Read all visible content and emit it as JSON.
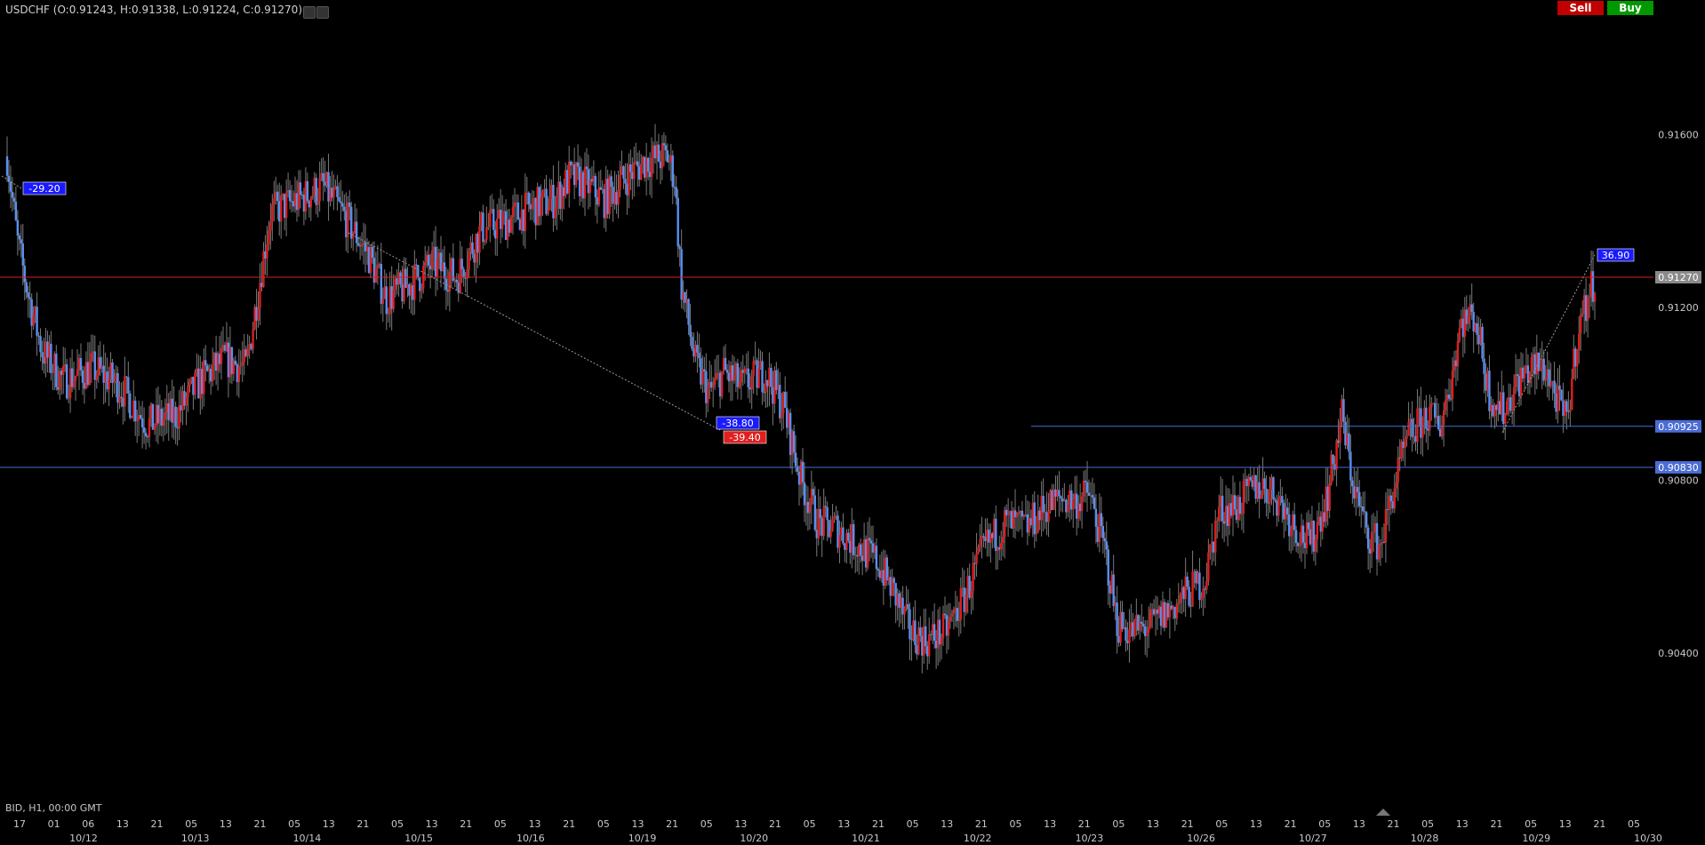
{
  "header": {
    "symbol_ohlc": "USDCHF (O:0.91243, H:0.91338, L:0.91224, C:0.91270)"
  },
  "buttons": {
    "sell": "Sell",
    "buy": "Buy"
  },
  "footer": {
    "info": "BID, H1, 00:00 GMT"
  },
  "colors": {
    "up": "#dd1e1e",
    "down": "#5b8ff0",
    "hline_red": "#d61f1f",
    "hline_blue": "#4a6cd4",
    "price_tag_grey": "#8a8a8a"
  },
  "chart_data": {
    "type": "candlestick",
    "symbol": "USDCHF",
    "timeframe": "H1",
    "ylim": [
      0.9003,
      0.9185
    ],
    "y_ticks": [
      {
        "label": "0.91600",
        "value": 0.916
      },
      {
        "label": "0.91200",
        "value": 0.912
      },
      {
        "label": "0.90800",
        "value": 0.908
      },
      {
        "label": "0.90400",
        "value": 0.904
      }
    ],
    "x_hour_labels": [
      "17",
      "01",
      "06",
      "13",
      "21",
      "05",
      "13",
      "21",
      "05",
      "13",
      "21",
      "05",
      "13",
      "21",
      "05",
      "13",
      "21",
      "05",
      "13",
      "21",
      "05",
      "13",
      "21",
      "05",
      "13",
      "21",
      "05",
      "13",
      "21",
      "05",
      "13",
      "21",
      "05",
      "13",
      "21",
      "05",
      "13",
      "21",
      "05",
      "13",
      "21",
      "05",
      "13",
      "21",
      "05",
      "13",
      "21",
      "05"
    ],
    "x_date_labels": [
      "10/12",
      "10/13",
      "10/14",
      "10/15",
      "10/16",
      "10/19",
      "10/20",
      "10/21",
      "10/22",
      "10/23",
      "10/26",
      "10/27",
      "10/28",
      "10/29",
      "10/30"
    ],
    "horizontal_lines": [
      {
        "price": 0.9127,
        "label": "0.91270",
        "color": "red"
      },
      {
        "price": 0.90925,
        "label": "0.90925",
        "color": "blue"
      },
      {
        "price": 0.9083,
        "label": "0.90830",
        "color": "blue"
      }
    ],
    "annotations": [
      "-29.20",
      "-38.80",
      "-39.40",
      "36.90"
    ],
    "close_path": [
      [
        0,
        0.9155
      ],
      [
        6,
        0.9135
      ],
      [
        12,
        0.9123
      ],
      [
        20,
        0.911
      ],
      [
        32,
        0.9103
      ],
      [
        48,
        0.9106
      ],
      [
        64,
        0.9102
      ],
      [
        80,
        0.9093
      ],
      [
        96,
        0.9095
      ],
      [
        110,
        0.9103
      ],
      [
        124,
        0.9108
      ],
      [
        136,
        0.9106
      ],
      [
        150,
        0.9142
      ],
      [
        166,
        0.9145
      ],
      [
        180,
        0.9148
      ],
      [
        194,
        0.914
      ],
      [
        206,
        0.9132
      ],
      [
        216,
        0.9122
      ],
      [
        228,
        0.9125
      ],
      [
        242,
        0.913
      ],
      [
        256,
        0.9127
      ],
      [
        270,
        0.9138
      ],
      [
        284,
        0.914
      ],
      [
        298,
        0.9143
      ],
      [
        312,
        0.9145
      ],
      [
        320,
        0.915
      ],
      [
        328,
        0.9149
      ],
      [
        340,
        0.9145
      ],
      [
        352,
        0.915
      ],
      [
        364,
        0.9154
      ],
      [
        376,
        0.9155
      ],
      [
        380,
        0.915
      ],
      [
        384,
        0.9125
      ],
      [
        392,
        0.9107
      ],
      [
        400,
        0.91
      ],
      [
        408,
        0.9105
      ],
      [
        418,
        0.9102
      ],
      [
        432,
        0.9105
      ],
      [
        442,
        0.9097
      ],
      [
        452,
        0.908
      ],
      [
        462,
        0.907
      ],
      [
        472,
        0.9069
      ],
      [
        484,
        0.9065
      ],
      [
        496,
        0.9061
      ],
      [
        506,
        0.9053
      ],
      [
        514,
        0.9045
      ],
      [
        524,
        0.9043
      ],
      [
        534,
        0.9045
      ],
      [
        544,
        0.9052
      ],
      [
        556,
        0.9064
      ],
      [
        568,
        0.907
      ],
      [
        580,
        0.9069
      ],
      [
        592,
        0.9074
      ],
      [
        600,
        0.9076
      ],
      [
        608,
        0.9075
      ],
      [
        616,
        0.9077
      ],
      [
        626,
        0.9062
      ],
      [
        632,
        0.9047
      ],
      [
        640,
        0.9045
      ],
      [
        650,
        0.9046
      ],
      [
        662,
        0.905
      ],
      [
        672,
        0.9054
      ],
      [
        682,
        0.9057
      ],
      [
        690,
        0.9073
      ],
      [
        700,
        0.9074
      ],
      [
        712,
        0.9079
      ],
      [
        722,
        0.9077
      ],
      [
        732,
        0.907
      ],
      [
        742,
        0.9065
      ],
      [
        752,
        0.9077
      ],
      [
        760,
        0.9095
      ],
      [
        766,
        0.908
      ],
      [
        774,
        0.9068
      ],
      [
        782,
        0.9065
      ],
      [
        790,
        0.9079
      ],
      [
        798,
        0.909
      ],
      [
        808,
        0.9095
      ],
      [
        816,
        0.9093
      ],
      [
        822,
        0.9103
      ],
      [
        828,
        0.9117
      ],
      [
        836,
        0.9118
      ],
      [
        844,
        0.91
      ],
      [
        852,
        0.9096
      ],
      [
        860,
        0.9103
      ],
      [
        868,
        0.9106
      ],
      [
        876,
        0.9106
      ],
      [
        882,
        0.9099
      ],
      [
        888,
        0.9093
      ],
      [
        894,
        0.9114
      ],
      [
        900,
        0.9122
      ],
      [
        904,
        0.9127
      ]
    ]
  }
}
